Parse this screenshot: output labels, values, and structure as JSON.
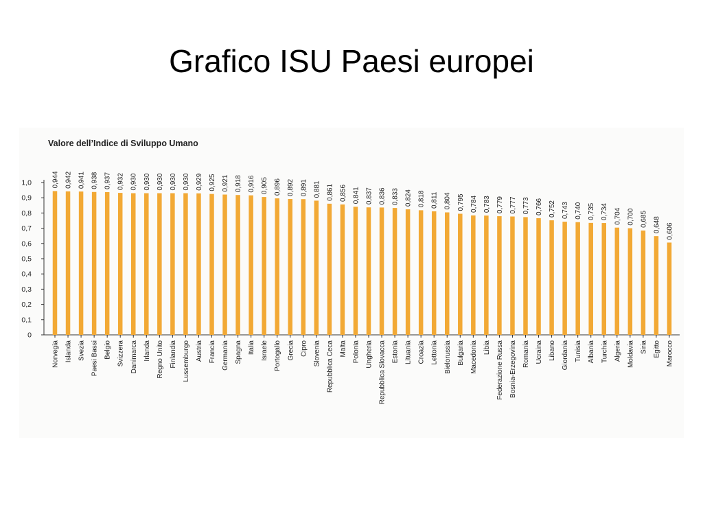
{
  "slide": {
    "title": "Grafico ISU Paesi europei"
  },
  "chart_data": {
    "type": "bar",
    "title": "Valore dell’Indice di Sviluppo Umano",
    "xlabel": "",
    "ylabel": "",
    "ylim": [
      0,
      1.0
    ],
    "y_ticks": [
      "0",
      "0,1",
      "0,2",
      "0,3",
      "0,4",
      "0,5",
      "0,6",
      "0,7",
      "0,8",
      "0,9",
      "1,0"
    ],
    "categories": [
      "Norvegia",
      "Islanda",
      "Svezia",
      "Paesi Bassi",
      "Belgio",
      "Svizzera",
      "Danimarca",
      "Irlanda",
      "Regno Unito",
      "Finlandia",
      "Lussemburgo",
      "Austria",
      "Francia",
      "Germania",
      "Spagna",
      "Italia",
      "Israele",
      "Portogallo",
      "Grecia",
      "Cipro",
      "Slovenia",
      "Repubblica Ceca",
      "Malta",
      "Polonia",
      "Ungheria",
      "Repubblica Slovacca",
      "Estonia",
      "Lituania",
      "Croazia",
      "Lettonia",
      "Bielorussia",
      "Bulgaria",
      "Macedonia",
      "Libia",
      "Federazione Russa",
      "Bosnia-Erzegovina",
      "Romania",
      "Ucraina",
      "Libano",
      "Giordania",
      "Tunisia",
      "Albania",
      "Turchia",
      "Algeria",
      "Moldavia",
      "Siria",
      "Egitto",
      "Marocco"
    ],
    "values": [
      0.944,
      0.942,
      0.941,
      0.938,
      0.937,
      0.932,
      0.93,
      0.93,
      0.93,
      0.93,
      0.93,
      0.929,
      0.925,
      0.921,
      0.918,
      0.916,
      0.905,
      0.896,
      0.892,
      0.891,
      0.881,
      0.861,
      0.856,
      0.841,
      0.837,
      0.836,
      0.833,
      0.824,
      0.818,
      0.811,
      0.804,
      0.795,
      0.784,
      0.783,
      0.779,
      0.777,
      0.773,
      0.766,
      0.752,
      0.743,
      0.74,
      0.735,
      0.734,
      0.704,
      0.7,
      0.685,
      0.648,
      0.606
    ],
    "value_labels": [
      "0,944",
      "0,942",
      "0,941",
      "0,938",
      "0,937",
      "0,932",
      "0,930",
      "0,930",
      "0,930",
      "0,930",
      "0,930",
      "0,929",
      "0,925",
      "0,921",
      "0,918",
      "0,916",
      "0,905",
      "0,896",
      "0,892",
      "0,891",
      "0,881",
      "0,861",
      "0,856",
      "0,841",
      "0,837",
      "0,836",
      "0,833",
      "0,824",
      "0,818",
      "0,811",
      "0,804",
      "0,795",
      "0,784",
      "0,783",
      "0,779",
      "0,777",
      "0,773",
      "0,766",
      "0,752",
      "0,743",
      "0,740",
      "0,735",
      "0,734",
      "0,704",
      "0,700",
      "0,685",
      "0,648",
      "0,606"
    ],
    "bar_color": "#f2a935",
    "grid": false,
    "legend": "none"
  }
}
